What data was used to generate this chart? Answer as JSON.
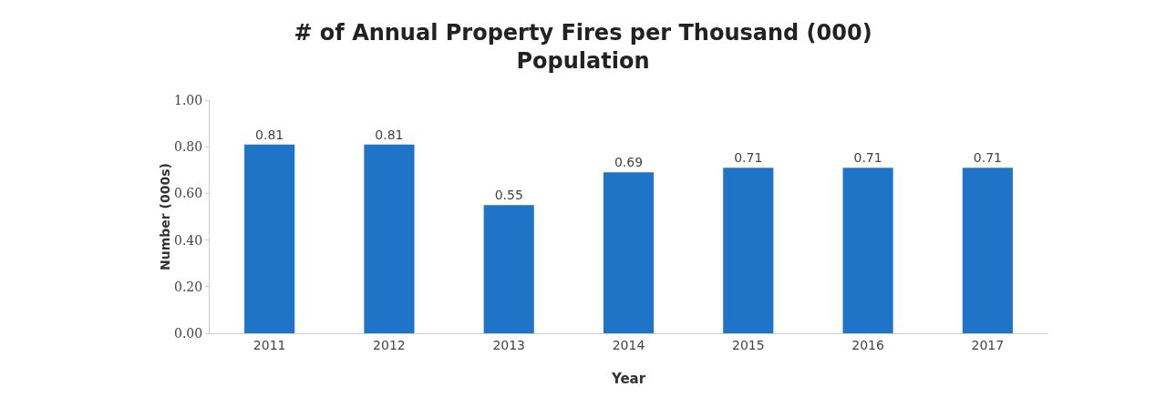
{
  "chart_data": {
    "type": "bar",
    "title": "# of Annual Property Fires per Thousand (000) Population",
    "xlabel": "Year",
    "ylabel": "Number (000s)",
    "categories": [
      "2011",
      "2012",
      "2013",
      "2014",
      "2015",
      "2016",
      "2017"
    ],
    "values": [
      0.81,
      0.81,
      0.55,
      0.69,
      0.71,
      0.71,
      0.71
    ],
    "color": "#1f74c8",
    "ylim": [
      0,
      1
    ],
    "yticks": [
      {
        "value": 0,
        "label": "0.00"
      },
      {
        "value": 0.2,
        "label": "0.20"
      },
      {
        "value": 0.4,
        "label": "0.40"
      },
      {
        "value": 0.6,
        "label": "0.60"
      },
      {
        "value": 0.8,
        "label": "0.80"
      },
      {
        "value": 1,
        "label": "1.00"
      }
    ],
    "grid": false,
    "data_labels": true
  }
}
